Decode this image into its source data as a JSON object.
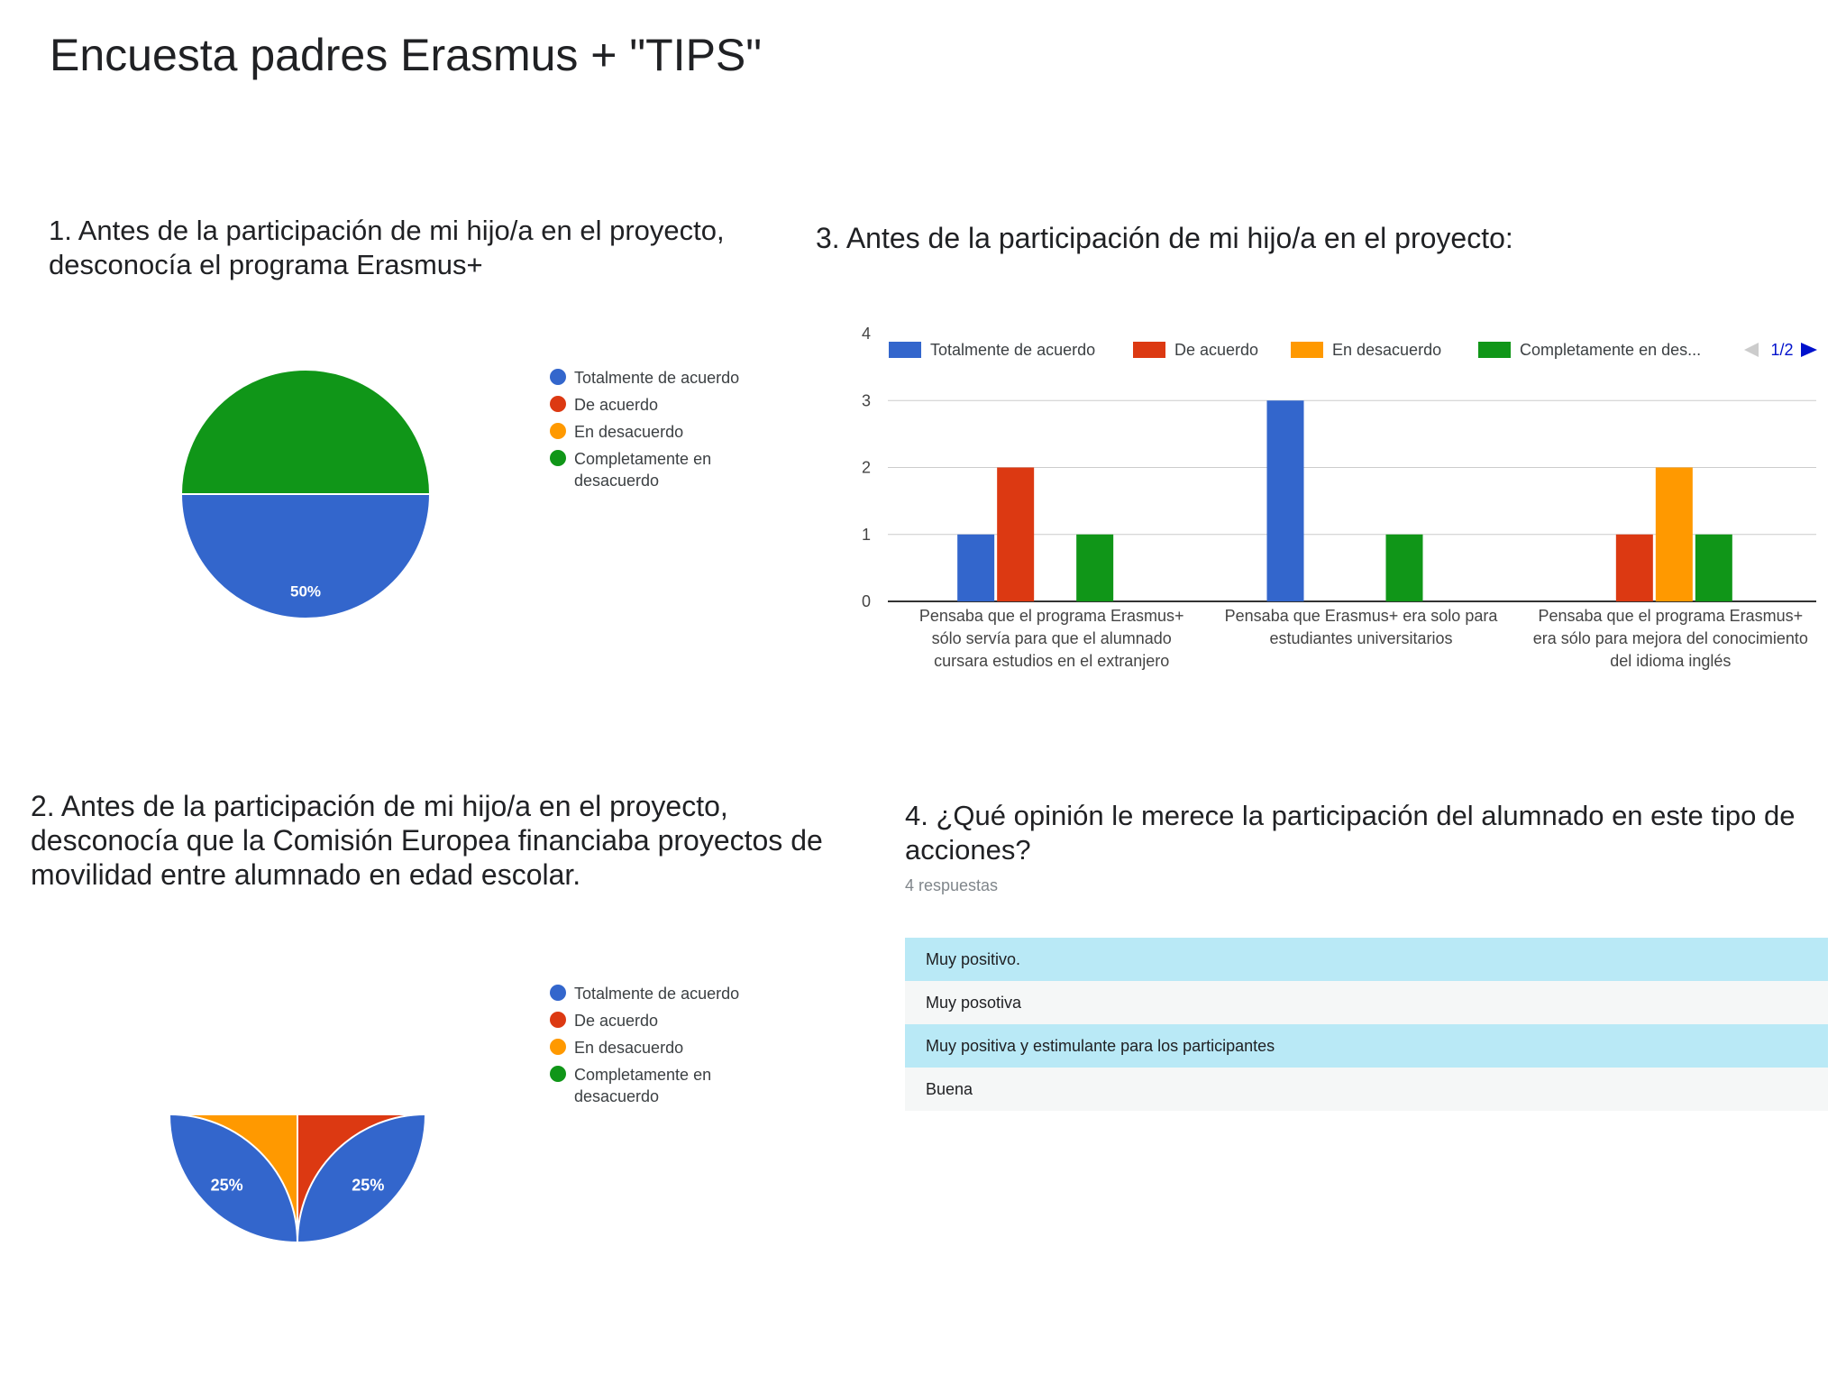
{
  "page_title": "Encuesta padres Erasmus + \"TIPS\"",
  "q1": {
    "title_lines": [
      "1. Antes de la participación de mi hijo/a en el proyecto,",
      "desconocía el programa Erasmus+"
    ]
  },
  "q2": {
    "title_lines": [
      "2. Antes de la participación de mi hijo/a en el proyecto,",
      "desconocía que la Comisión Europea financiaba proyectos de",
      "movilidad entre alumnado en edad escolar."
    ]
  },
  "q3": {
    "title": "3. Antes de la participación de mi hijo/a en el proyecto:"
  },
  "q4": {
    "title_lines": [
      "4. ¿Qué opinión le merece la participación del alumnado en este tipo de",
      "acciones?"
    ],
    "response_count": "4 respuestas",
    "responses": [
      "Muy positivo.",
      "Muy posotiva",
      "Muy positiva y estimulante para los participantes",
      "Buena"
    ]
  },
  "legend_pie": [
    "Totalmente de acuerdo",
    "De acuerdo",
    "En desacuerdo",
    "Completamente en desacuerdo"
  ],
  "legend_bar": [
    "Totalmente de acuerdo",
    "De acuerdo",
    "En desacuerdo",
    "Completamente en des..."
  ],
  "legend_page": "1/2",
  "colors": {
    "blue": "#3366cc",
    "red": "#dc3912",
    "orange": "#ff9900",
    "green": "#109618"
  },
  "chart_data": [
    {
      "type": "pie",
      "labels": [
        "Totalmente de acuerdo",
        "De acuerdo",
        "En desacuerdo",
        "Completamente en desacuerdo"
      ],
      "values": [
        50,
        0,
        0,
        50
      ],
      "data_labels": [
        "50%",
        "",
        "",
        "50%"
      ]
    },
    {
      "type": "pie",
      "labels": [
        "Totalmente de acuerdo",
        "De acuerdo",
        "En desacuerdo",
        "Completamente en desacuerdo"
      ],
      "values": [
        50,
        25,
        25,
        0
      ],
      "data_labels": [
        "50%",
        "25%",
        "25%",
        ""
      ]
    },
    {
      "type": "bar",
      "categories": [
        [
          "Pensaba que el programa Erasmus+",
          "sólo servía para que el alumnado",
          "cursara estudios en el extranjero"
        ],
        [
          "Pensaba que Erasmus+ era solo para",
          "estudiantes universitarios"
        ],
        [
          "Pensaba que el programa Erasmus+",
          "era sólo para mejora del conocimiento",
          "del idioma inglés"
        ]
      ],
      "series": [
        {
          "name": "Totalmente de acuerdo",
          "values": [
            1,
            3,
            0
          ]
        },
        {
          "name": "De acuerdo",
          "values": [
            2,
            0,
            1
          ]
        },
        {
          "name": "En desacuerdo",
          "values": [
            0,
            0,
            2
          ]
        },
        {
          "name": "Completamente en desacuerdo",
          "values": [
            1,
            1,
            1
          ]
        }
      ],
      "ylim": [
        0,
        4
      ],
      "yticks": [
        "0",
        "1",
        "2",
        "3",
        "4"
      ],
      "grid": true,
      "legend_position": "top"
    }
  ]
}
